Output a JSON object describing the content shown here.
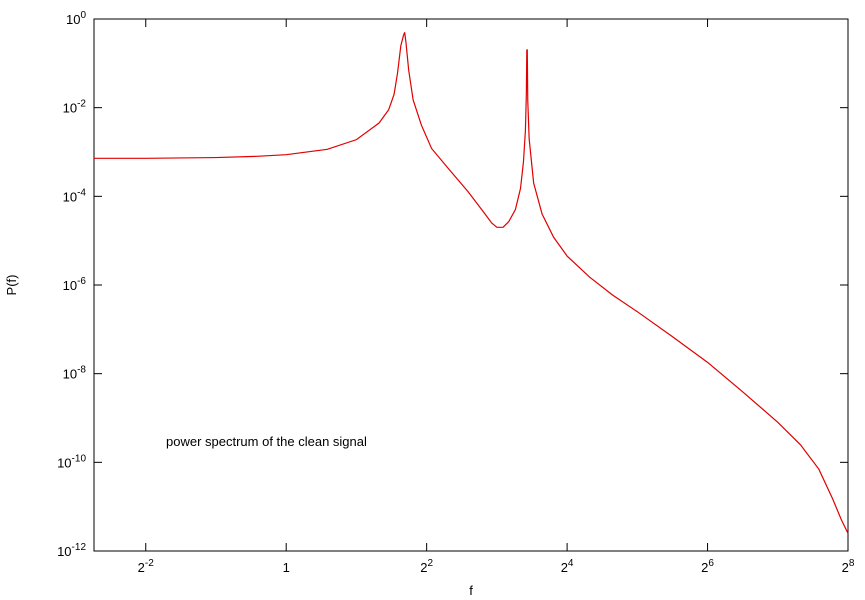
{
  "chart_data": {
    "type": "line",
    "xlabel": "f",
    "ylabel": "P(f)",
    "annotation": "power spectrum of the clean signal",
    "x_scale": "log2",
    "y_scale": "log10",
    "xlim": [
      0.15,
      256
    ],
    "ylim": [
      1e-12,
      1
    ],
    "x_ticks": [
      {
        "value": 0.25,
        "base": "2",
        "exp": "-2"
      },
      {
        "value": 1,
        "base": "1",
        "exp": ""
      },
      {
        "value": 4,
        "base": "2",
        "exp": "2"
      },
      {
        "value": 16,
        "base": "2",
        "exp": "4"
      },
      {
        "value": 64,
        "base": "2",
        "exp": "6"
      },
      {
        "value": 256,
        "base": "2",
        "exp": "8"
      }
    ],
    "y_ticks": [
      {
        "value": 1,
        "base": "10",
        "exp": "0"
      },
      {
        "value": 0.01,
        "base": "10",
        "exp": "-2"
      },
      {
        "value": 0.0001,
        "base": "10",
        "exp": "-4"
      },
      {
        "value": 1e-06,
        "base": "10",
        "exp": "-6"
      },
      {
        "value": 1e-08,
        "base": "10",
        "exp": "-8"
      },
      {
        "value": 1e-10,
        "base": "10",
        "exp": "-10"
      },
      {
        "value": 1e-12,
        "base": "10",
        "exp": "-12"
      }
    ],
    "grid": false,
    "series": [
      {
        "color": "#e00000",
        "points": [
          [
            0.15,
            0.00072
          ],
          [
            0.25,
            0.00072
          ],
          [
            0.5,
            0.00075
          ],
          [
            0.75,
            0.0008
          ],
          [
            1.0,
            0.00087
          ],
          [
            1.5,
            0.00115
          ],
          [
            2.0,
            0.0019
          ],
          [
            2.5,
            0.0045
          ],
          [
            2.75,
            0.009
          ],
          [
            2.9,
            0.02
          ],
          [
            3.0,
            0.06
          ],
          [
            3.1,
            0.25
          ],
          [
            3.18,
            0.42
          ],
          [
            3.22,
            0.5
          ],
          [
            3.26,
            0.3
          ],
          [
            3.35,
            0.07
          ],
          [
            3.5,
            0.015
          ],
          [
            3.8,
            0.004
          ],
          [
            4.2,
            0.0012
          ],
          [
            5.0,
            0.0004
          ],
          [
            6.0,
            0.00013
          ],
          [
            7.0,
            4.5e-05
          ],
          [
            7.6,
            2.5e-05
          ],
          [
            8.0,
            2e-05
          ],
          [
            8.5,
            2e-05
          ],
          [
            9.0,
            2.7e-05
          ],
          [
            9.6,
            5e-05
          ],
          [
            10.1,
            0.00015
          ],
          [
            10.4,
            0.0006
          ],
          [
            10.6,
            0.003
          ],
          [
            10.7,
            0.02
          ],
          [
            10.75,
            0.2
          ],
          [
            10.8,
            0.2
          ],
          [
            10.85,
            0.015
          ],
          [
            11.0,
            0.002
          ],
          [
            11.5,
            0.0002
          ],
          [
            12.5,
            4e-05
          ],
          [
            14.0,
            1.2e-05
          ],
          [
            16.0,
            4.5e-06
          ],
          [
            20.0,
            1.5e-06
          ],
          [
            25.0,
            6e-07
          ],
          [
            32.0,
            2.5e-07
          ],
          [
            45.0,
            7e-08
          ],
          [
            64.0,
            1.8e-08
          ],
          [
            90.0,
            4e-09
          ],
          [
            128.0,
            8e-10
          ],
          [
            160.0,
            2.5e-10
          ],
          [
            192.0,
            7e-11
          ],
          [
            220.0,
            1.5e-11
          ],
          [
            240.0,
            5e-12
          ],
          [
            256.0,
            2.5e-12
          ]
        ]
      }
    ]
  }
}
